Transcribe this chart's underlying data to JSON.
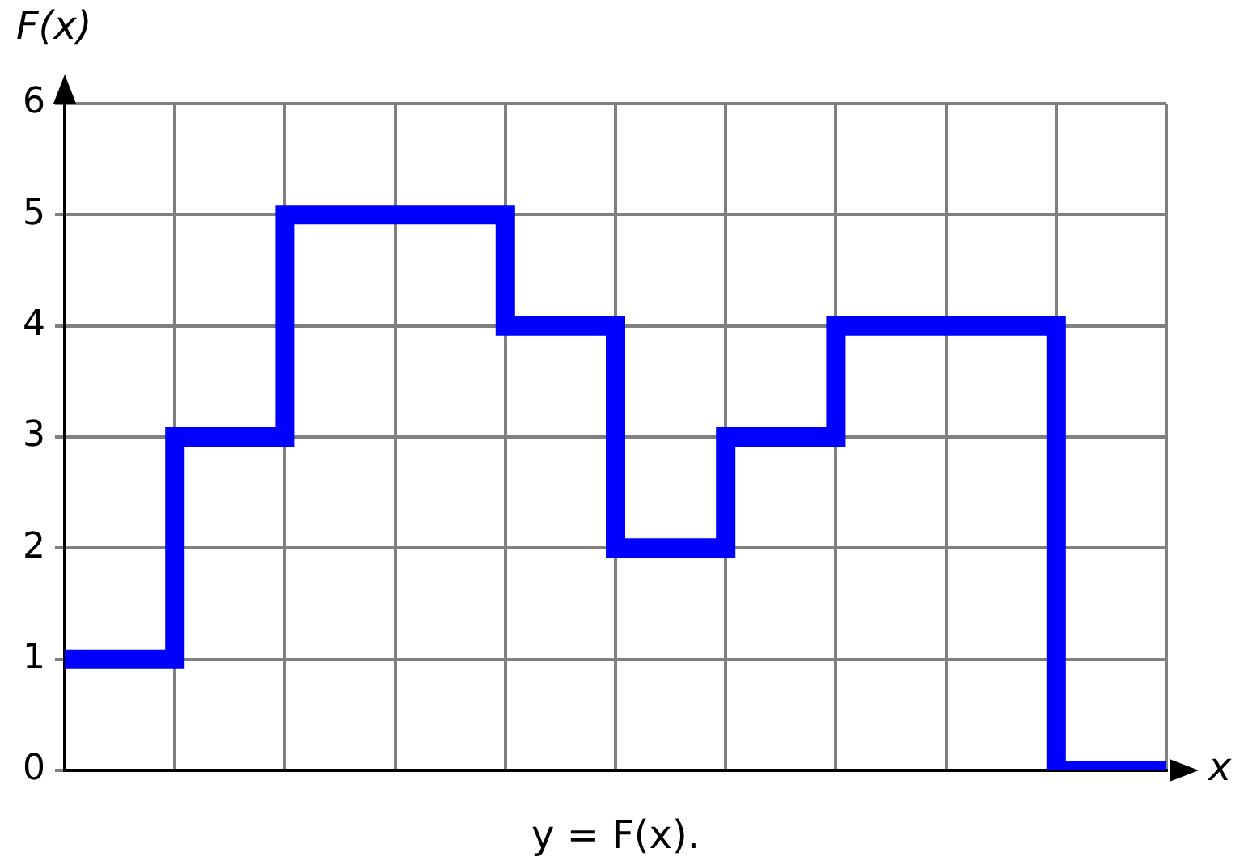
{
  "chart_data": {
    "type": "step",
    "categories": [
      null,
      null,
      null,
      null,
      null,
      null,
      null,
      null,
      null,
      null,
      null
    ],
    "values": [
      1,
      3,
      5,
      5,
      4,
      2,
      3,
      4,
      4,
      0,
      0
    ],
    "color": "#0000ff",
    "xlabel": "x",
    "ylabel": "F(x)",
    "annotations": [
      "y = F(x)."
    ],
    "ylim": [
      0,
      6
    ],
    "yticks": [
      0,
      1,
      2,
      3,
      4,
      5,
      6
    ],
    "grid": true,
    "legend": false,
    "tick_labels": "y",
    "marker": "none",
    "line_style": "solid"
  }
}
